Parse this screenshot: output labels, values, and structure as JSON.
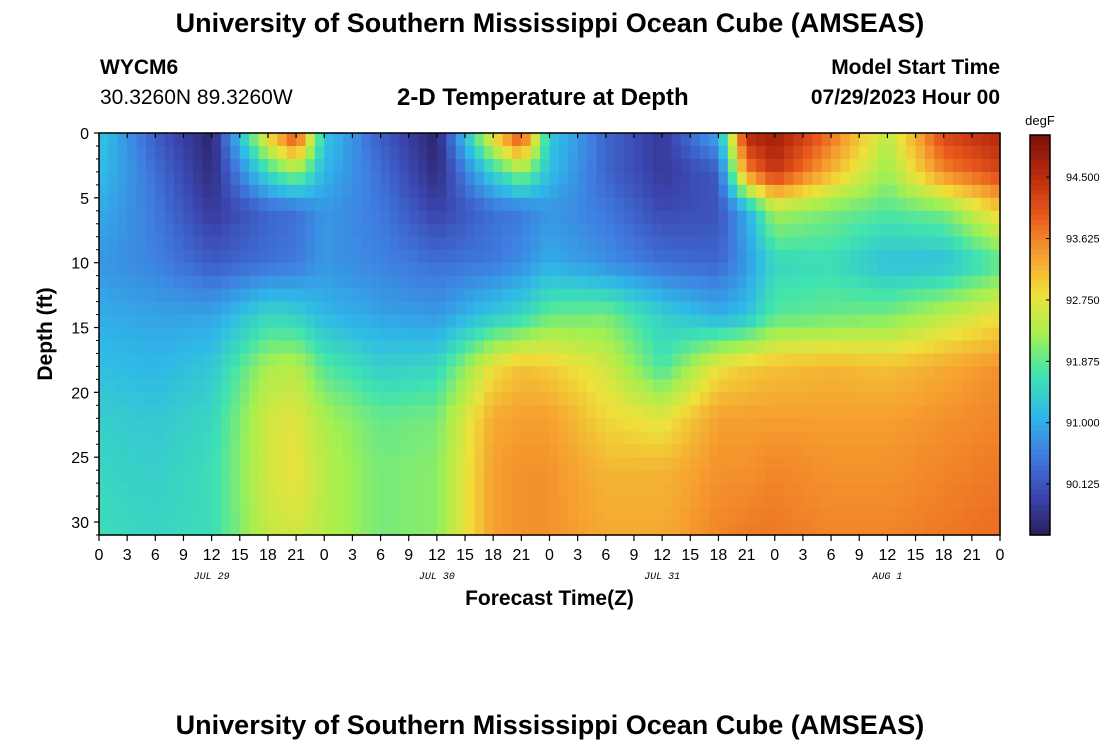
{
  "header": {
    "title": "University of Southern Mississippi Ocean Cube (AMSEAS)",
    "station_id": "WYCM6",
    "station_coords": "30.3260N  89.3260W",
    "panel_title": "2-D Temperature at Depth",
    "model_start_label": "Model Start Time",
    "model_start_value": "07/29/2023 Hour 00"
  },
  "footer": {
    "title": "University of Southern Mississippi Ocean Cube (AMSEAS)"
  },
  "chart_data": {
    "type": "heatmap",
    "title": "2-D Temperature at Depth",
    "xlabel": "Forecast Time(Z)",
    "ylabel": "Depth (ft)",
    "colorbar_unit": "degF",
    "x_hours_range": [
      0,
      96
    ],
    "x_tick_labels": [
      "0",
      "3",
      "6",
      "9",
      "12",
      "15",
      "18",
      "21",
      "0",
      "3",
      "6",
      "9",
      "12",
      "15",
      "18",
      "21",
      "0",
      "3",
      "6",
      "9",
      "12",
      "15",
      "18",
      "21",
      "0",
      "3",
      "6",
      "9",
      "12",
      "15",
      "18",
      "21",
      "0"
    ],
    "date_labels": [
      {
        "label": "JUL 29",
        "hour": 12
      },
      {
        "label": "JUL 30",
        "hour": 36
      },
      {
        "label": "JUL 31",
        "hour": 60
      },
      {
        "label": "AUG 1",
        "hour": 84
      }
    ],
    "y_range": [
      0,
      31
    ],
    "y_ticks": [
      0,
      5,
      10,
      15,
      20,
      25,
      30
    ],
    "y_reversed": true,
    "colorbar_range": [
      89.4,
      95.1
    ],
    "colorbar_ticks": [
      "94.500",
      "93.625",
      "92.750",
      "91.875",
      "91.000",
      "90.125"
    ],
    "colorbar_tick_values": [
      94.5,
      93.625,
      92.75,
      91.875,
      91.0,
      90.125
    ],
    "colormap": [
      "#2a1e5c",
      "#3b46b0",
      "#3f7de0",
      "#2fb8e8",
      "#3fe3b0",
      "#a4f050",
      "#efe03a",
      "#f6a030",
      "#e8581c",
      "#b82a0e",
      "#7c1008"
    ],
    "depth_levels_ft": [
      0,
      3,
      6,
      10,
      14,
      18,
      22,
      26,
      31
    ],
    "time_hours": [
      0,
      6,
      12,
      18,
      21,
      24,
      30,
      36,
      42,
      45,
      48,
      54,
      60,
      66,
      69,
      72,
      78,
      84,
      90,
      96
    ],
    "temperature_degF": [
      [
        91.3,
        90.2,
        89.5,
        93.0,
        94.3,
        91.3,
        90.2,
        89.5,
        93.0,
        94.3,
        91.3,
        90.3,
        89.8,
        91.0,
        94.6,
        94.8,
        93.8,
        92.4,
        94.2,
        94.6
      ],
      [
        91.2,
        90.4,
        89.6,
        91.6,
        92.2,
        91.1,
        90.4,
        89.6,
        91.5,
        92.2,
        91.2,
        90.3,
        89.8,
        90.2,
        93.6,
        94.4,
        93.2,
        92.2,
        93.6,
        94.2
      ],
      [
        91.0,
        90.5,
        89.8,
        90.3,
        90.4,
        90.8,
        90.5,
        89.9,
        90.4,
        90.5,
        90.8,
        90.5,
        90.0,
        90.1,
        91.0,
        92.3,
        92.0,
        91.8,
        92.0,
        93.0
      ],
      [
        90.8,
        90.6,
        90.2,
        90.4,
        90.5,
        90.8,
        90.6,
        90.4,
        90.5,
        90.7,
        91.0,
        90.7,
        90.4,
        90.3,
        90.8,
        91.5,
        91.6,
        91.2,
        91.2,
        91.8
      ],
      [
        91.0,
        90.9,
        90.9,
        91.5,
        91.4,
        91.1,
        90.9,
        90.8,
        91.3,
        91.5,
        91.9,
        92.0,
        91.4,
        91.0,
        91.2,
        91.8,
        91.9,
        92.0,
        92.4,
        92.8
      ],
      [
        91.2,
        91.1,
        91.3,
        92.3,
        92.4,
        91.8,
        91.4,
        91.5,
        92.8,
        93.1,
        93.0,
        92.6,
        91.7,
        92.8,
        93.0,
        93.1,
        93.2,
        93.1,
        93.3,
        93.5
      ],
      [
        91.4,
        91.3,
        91.5,
        92.6,
        92.7,
        92.3,
        91.9,
        92.0,
        93.3,
        93.4,
        93.4,
        92.9,
        92.7,
        93.4,
        93.4,
        93.4,
        93.4,
        93.4,
        93.5,
        93.6
      ],
      [
        91.5,
        91.4,
        91.6,
        92.6,
        92.8,
        92.4,
        92.0,
        92.1,
        93.4,
        93.5,
        93.5,
        93.2,
        93.2,
        93.5,
        93.5,
        93.6,
        93.5,
        93.5,
        93.6,
        93.7
      ],
      [
        91.6,
        91.5,
        91.6,
        92.5,
        92.6,
        92.4,
        92.0,
        92.1,
        93.4,
        93.5,
        93.5,
        93.3,
        93.3,
        93.6,
        93.7,
        93.7,
        93.6,
        93.6,
        93.7,
        93.8
      ]
    ]
  }
}
